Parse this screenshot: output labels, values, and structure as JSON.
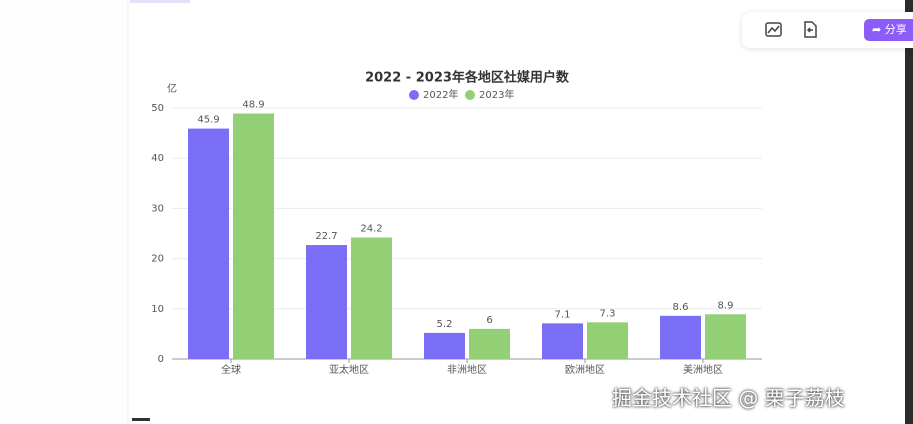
{
  "chart_data": {
    "type": "bar",
    "title": "2022 - 2023年各地区社媒用户数",
    "y_label": "亿",
    "categories": [
      "全球",
      "亚太地区",
      "非洲地区",
      "欧洲地区",
      "美洲地区"
    ],
    "series": [
      {
        "name": "2022年",
        "color": "#7b6ef6",
        "values": [
          45.9,
          22.7,
          5.2,
          7.1,
          8.6
        ]
      },
      {
        "name": "2023年",
        "color": "#93cf74",
        "values": [
          48.9,
          24.2,
          6,
          7.3,
          8.9
        ]
      }
    ],
    "ylim": [
      0,
      50
    ],
    "yticks": [
      0,
      10,
      20,
      30,
      40,
      50
    ],
    "grid": true
  },
  "toolbar": {
    "share": "分享"
  },
  "watermark": "掘金技术社区 @ 栗子荔枝"
}
